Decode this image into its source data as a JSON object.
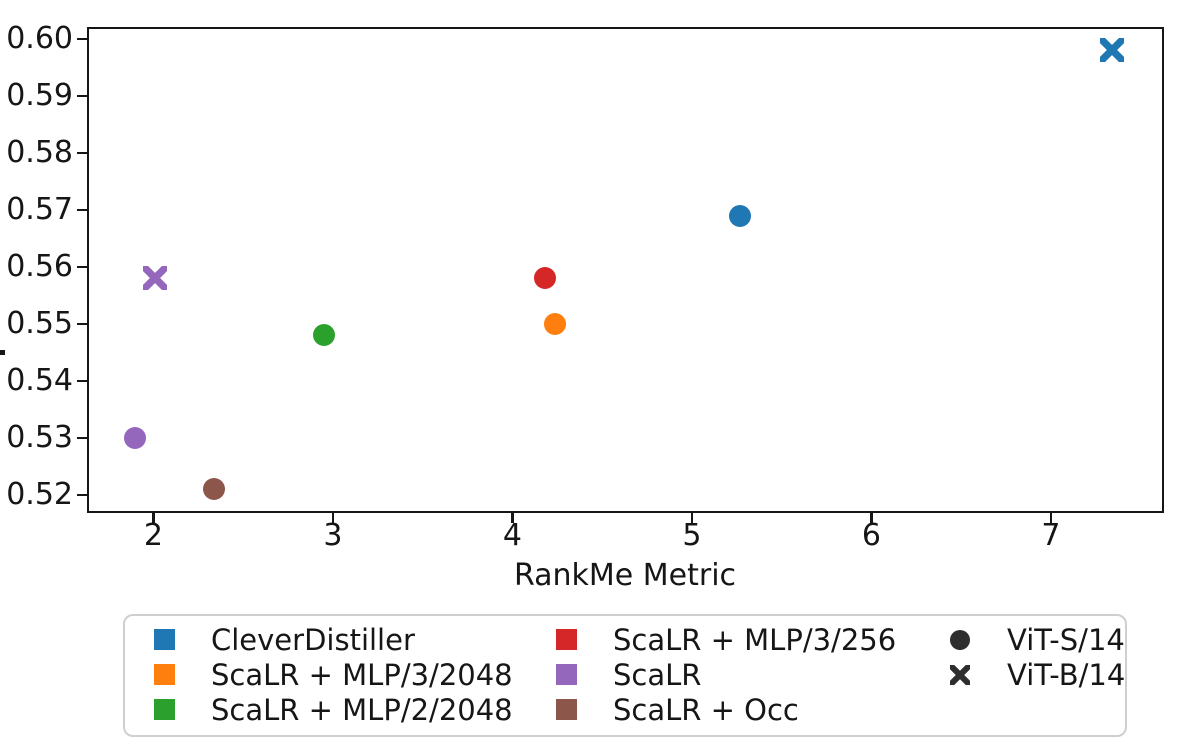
{
  "chart_data": {
    "type": "scatter",
    "xlabel": "RankMe Metric",
    "xlim": [
      1.63,
      7.63
    ],
    "ylim": [
      0.5168,
      0.6021
    ],
    "x_ticks": [
      "2",
      "3",
      "4",
      "5",
      "6",
      "7"
    ],
    "y_ticks": [
      "0.52",
      "0.53",
      "0.54",
      "0.55",
      "0.56",
      "0.57",
      "0.58",
      "0.59",
      "0.60"
    ],
    "grid": false,
    "legend_position": "below-plot",
    "series": [
      {
        "name": "CleverDistiller",
        "color": "#1f77b4",
        "points": [
          {
            "arch": "ViT-S/14",
            "marker": "circle",
            "x": 5.27,
            "y": 0.569
          },
          {
            "arch": "ViT-B/14",
            "marker": "x",
            "x": 7.34,
            "y": 0.598
          }
        ]
      },
      {
        "name": "ScaLR + MLP/3/2048",
        "color": "#ff7f0e",
        "points": [
          {
            "arch": "ViT-S/14",
            "marker": "circle",
            "x": 4.24,
            "y": 0.55
          }
        ]
      },
      {
        "name": "ScaLR + MLP/2/2048",
        "color": "#2ca02c",
        "points": [
          {
            "arch": "ViT-S/14",
            "marker": "circle",
            "x": 2.95,
            "y": 0.548
          }
        ]
      },
      {
        "name": "ScaLR + MLP/3/256",
        "color": "#d62728",
        "points": [
          {
            "arch": "ViT-S/14",
            "marker": "circle",
            "x": 4.18,
            "y": 0.558
          }
        ]
      },
      {
        "name": "ScaLR",
        "color": "#9467bd",
        "points": [
          {
            "arch": "ViT-S/14",
            "marker": "circle",
            "x": 1.9,
            "y": 0.53
          },
          {
            "arch": "ViT-B/14",
            "marker": "x",
            "x": 2.01,
            "y": 0.558
          }
        ]
      },
      {
        "name": "ScaLR + Occ",
        "color": "#8c564b",
        "points": [
          {
            "arch": "ViT-S/14",
            "marker": "circle",
            "x": 2.34,
            "y": 0.521
          }
        ]
      }
    ],
    "legend": {
      "model_entries": [
        {
          "label": "CleverDistiller",
          "marker": "square",
          "color": "#1f77b4"
        },
        {
          "label": "ScaLR + MLP/3/2048",
          "marker": "square",
          "color": "#ff7f0e"
        },
        {
          "label": "ScaLR + MLP/2/2048",
          "marker": "square",
          "color": "#2ca02c"
        },
        {
          "label": "ScaLR + MLP/3/256",
          "marker": "square",
          "color": "#d62728"
        },
        {
          "label": "ScaLR",
          "marker": "square",
          "color": "#9467bd"
        },
        {
          "label": "ScaLR + Occ",
          "marker": "square",
          "color": "#8c564b"
        }
      ],
      "marker_entries": [
        {
          "label": "ViT-S/14",
          "marker": "circle",
          "color": "#2e2e2e"
        },
        {
          "label": "ViT-B/14",
          "marker": "x",
          "color": "#2e2e2e"
        }
      ]
    }
  }
}
